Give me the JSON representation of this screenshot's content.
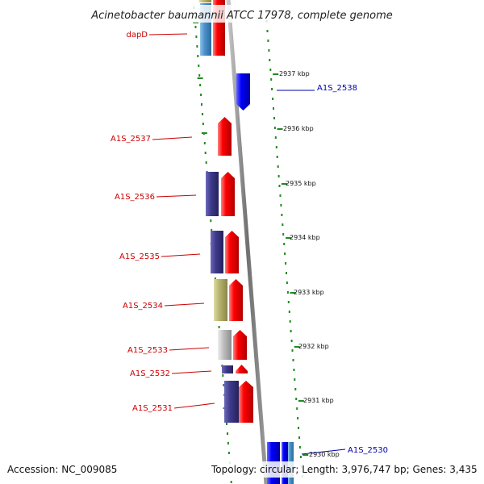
{
  "title": "Acinetobacter baumannii ATCC 17978, complete genome",
  "accession_label": "Accession: NC_009085",
  "genome_info": "Topology: circular; Length: 3,976,747 bp; Genes: 3,435",
  "colors": {
    "forward_cds": "#ff0000",
    "reverse_cds": "#0000ff",
    "label_forward": "#cc0000",
    "label_reverse": "#0000aa",
    "cog_navy": "#3e3a8c",
    "cog_olive": "#b7b36e",
    "cog_lightblue": "#4a90c8",
    "cog_grey": "#c0c0c0",
    "dots": "#1f8a1f",
    "backbone": "#808080"
  },
  "kbp_ticks": [
    "2937 kbp",
    "2936 kbp",
    "2935 kbp",
    "2934 kbp",
    "2933 kbp",
    "2932 kbp",
    "2931 kbp",
    "2930 kbp"
  ],
  "gene_labels": [
    {
      "name": "dapD",
      "strand": "forward"
    },
    {
      "name": "A1S_2538",
      "strand": "reverse"
    },
    {
      "name": "A1S_2537",
      "strand": "forward"
    },
    {
      "name": "A1S_2536",
      "strand": "forward"
    },
    {
      "name": "A1S_2535",
      "strand": "forward"
    },
    {
      "name": "A1S_2534",
      "strand": "forward"
    },
    {
      "name": "A1S_2533",
      "strand": "forward"
    },
    {
      "name": "A1S_2532",
      "strand": "forward"
    },
    {
      "name": "A1S_2531",
      "strand": "forward"
    },
    {
      "name": "A1S_2530",
      "strand": "reverse"
    }
  ]
}
